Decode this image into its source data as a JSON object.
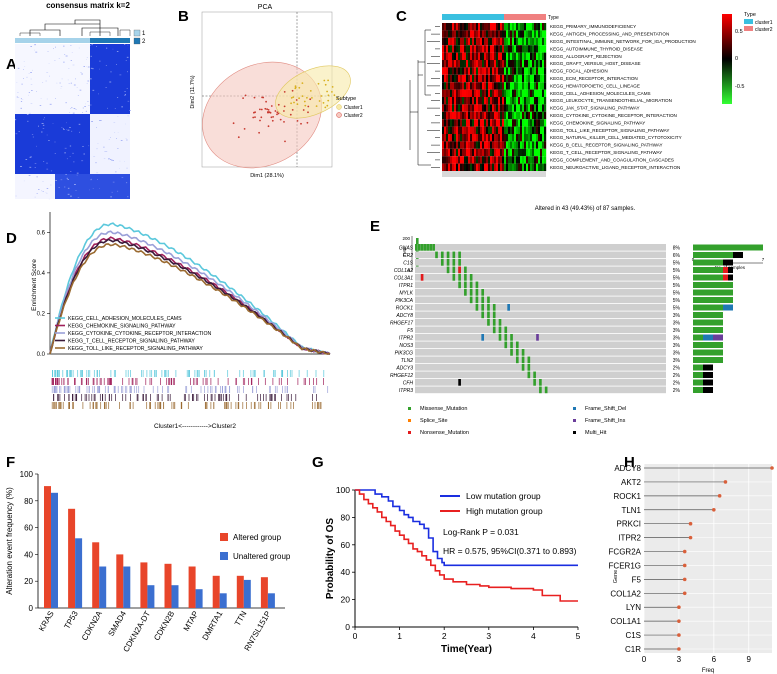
{
  "panel_labels": {
    "A": "A",
    "B": "B",
    "C": "C",
    "D": "D",
    "E": "E",
    "F": "F",
    "G": "G",
    "H": "H"
  },
  "panelA": {
    "title": "consensus matrix k=2",
    "legend": [
      {
        "label": "1",
        "color": "#a6d3ea"
      },
      {
        "label": "2",
        "color": "#1f78b4"
      }
    ]
  },
  "panelB": {
    "title": "PCA",
    "xlabel": "Dim1 (28.1%)",
    "ylabel": "Dim2 (11.7%)",
    "legend_title": "Subtype",
    "legend": [
      {
        "label": "Cluster1",
        "color": "#e7c94a"
      },
      {
        "label": "Cluster2",
        "color": "#d8453a"
      }
    ]
  },
  "panelC": {
    "type_label": "Type",
    "pathways": [
      "KEGG_PRIMARY_IMMUNODEFICIENCY",
      "KEGG_ANTIGEN_PROCESSING_AND_PRESENTATION",
      "KEGG_INTESTINAL_IMMUNE_NETWORK_FOR_IGA_PRODUCTION",
      "KEGG_AUTOIMMUNE_THYROID_DISEASE",
      "KEGG_ALLOGRAFT_REJECTION",
      "KEGG_GRAFT_VERSUS_HOST_DISEASE",
      "KEGG_FOCAL_ADHESION",
      "KEGG_ECM_RECEPTOR_INTERACTION",
      "KEGG_HEMATOPOIETIC_CELL_LINEAGE",
      "KEGG_CELL_ADHESION_MOLECULES_CAMS",
      "KEGG_LEUKOCYTE_TRANSENDOTHELIAL_MIGRATION",
      "KEGG_JAK_STAT_SIGNALING_PATHWAY",
      "KEGG_CYTOKINE_CYTOKINE_RECEPTOR_INTERACTION",
      "KEGG_CHEMOKINE_SIGNALING_PATHWAY",
      "KEGG_TOLL_LIKE_RECEPTOR_SIGNALING_PATHWAY",
      "KEGG_NATURAL_KILLER_CELL_MEDIATED_CYTOTOXICITY",
      "KEGG_B_CELL_RECEPTOR_SIGNALING_PATHWAY",
      "KEGG_T_CELL_RECEPTOR_SIGNALING_PATHWAY",
      "KEGG_COMPLEMENT_AND_COAGULATION_CASCADES",
      "KEGG_NEUROACTIVE_LIGAND_RECEPTOR_INTERACTION"
    ],
    "scale_ticks": [
      "0.5",
      "0",
      "-0.5"
    ],
    "type_legend_title": "Type",
    "type_legend": [
      {
        "label": "cluster1",
        "color": "#3ac0e0"
      },
      {
        "label": "cluster2",
        "color": "#f08080"
      }
    ]
  },
  "panelD": {
    "ylabel": "Enrichment Score",
    "yticks": [
      "0.0",
      "0.2",
      "0.4",
      "0.6"
    ],
    "xlabel": "Cluster1<------------>Cluster2",
    "series": [
      {
        "name": "KEGG_CELL_ADHESION_MOLECULES_CAMS",
        "color": "#5bc8dc",
        "peak": 0.64
      },
      {
        "name": "KEGG_CHEMOKINE_SIGNALING_PATHWAY",
        "color": "#a0205a",
        "peak": 0.57
      },
      {
        "name": "KEGG_CYTOKINE_CYTOKINE_RECEPTOR_INTERACTION",
        "color": "#9aa0d8",
        "peak": 0.6
      },
      {
        "name": "KEGG_T_CELL_RECEPTOR_SIGNALING_PATHWAY",
        "color": "#3a1a3a",
        "peak": 0.56
      },
      {
        "name": "KEGG_TOLL_LIKE_RECEPTOR_SIGNALING_PATHWAY",
        "color": "#9a6a30",
        "peak": 0.54
      }
    ]
  },
  "panelE": {
    "title": "Altered in 43 (49.43%) of 87 samples.",
    "tmb_label": "TMB",
    "tmb_ticks": [
      "200",
      "0"
    ],
    "nsamples_label": "No. of samples",
    "nsamples_ticks": [
      "0",
      "7"
    ],
    "genes": [
      "GNAS",
      "CR2",
      "C1S",
      "COL1A2",
      "COL3A1",
      "ITPR1",
      "MYLK",
      "PIK3CA",
      "ROCK1",
      "ADCY8",
      "RHGEF17",
      "F5",
      "ITPR2",
      "NOS3",
      "PIK3CG",
      "TLN2",
      "ADCY3",
      "RHGEF12",
      "CFH",
      "ITPR3"
    ],
    "percents": [
      "8%",
      "6%",
      "5%",
      "5%",
      "5%",
      "5%",
      "5%",
      "5%",
      "5%",
      "3%",
      "3%",
      "3%",
      "3%",
      "3%",
      "3%",
      "3%",
      "2%",
      "2%",
      "2%",
      "2%"
    ],
    "counts": [
      7,
      5,
      4,
      4,
      4,
      4,
      4,
      4,
      4,
      3,
      3,
      3,
      3,
      3,
      3,
      3,
      2,
      2,
      2,
      2
    ],
    "legend": [
      {
        "label": "Missense_Mutation",
        "color": "#33a02c"
      },
      {
        "label": "Frame_Shift_Del",
        "color": "#1f78b4"
      },
      {
        "label": "Splice_Site",
        "color": "#ff7f00"
      },
      {
        "label": "Frame_Shift_Ins",
        "color": "#6a3d9a"
      },
      {
        "label": "Nonsense_Mutation",
        "color": "#e31a1c"
      },
      {
        "label": "Multi_Hit",
        "color": "#000000"
      }
    ]
  },
  "chart_data": [
    {
      "type": "bar",
      "panel": "F",
      "ylabel": "Alteration event frequency (%)",
      "yticks": [
        0,
        20,
        40,
        60,
        80,
        100
      ],
      "ylim": [
        0,
        100
      ],
      "categories": [
        "KRAS",
        "TP53",
        "CDKN2A",
        "SMAD4",
        "CDKN2A-DT",
        "CDKN2B",
        "MTAP",
        "DMRTA1",
        "TTN",
        "RN7SL151P"
      ],
      "series": [
        {
          "name": "Altered group",
          "color": "#e8452a",
          "values": [
            91,
            74,
            49,
            40,
            34,
            33,
            31,
            24,
            24,
            23
          ]
        },
        {
          "name": "Unaltered group",
          "color": "#3b6fd0",
          "values": [
            86,
            52,
            31,
            31,
            17,
            17,
            14,
            11,
            21,
            11
          ]
        }
      ]
    },
    {
      "type": "line",
      "panel": "G",
      "xlabel": "Time(Year)",
      "ylabel": "Probability of OS",
      "xticks": [
        0,
        1,
        2,
        3,
        4,
        5
      ],
      "yticks": [
        "0",
        "20",
        "40",
        "60",
        "80",
        "100"
      ],
      "xlim": [
        0,
        5
      ],
      "ylim": [
        0,
        100
      ],
      "annotations": [
        "Log-Rank P = 0.031",
        "HR = 0.575, 95%CI(0.371 to 0.893)"
      ],
      "series": [
        {
          "name": "Low mutation group",
          "color": "#1a2ee0",
          "x": [
            0,
            0.3,
            0.45,
            0.6,
            0.75,
            0.85,
            1.0,
            1.1,
            1.2,
            1.3,
            1.45,
            1.55,
            1.65,
            1.75,
            1.85,
            1.95,
            2.0,
            5
          ],
          "y": [
            100,
            100,
            97,
            95,
            92,
            88,
            85,
            82,
            80,
            77,
            75,
            72,
            65,
            55,
            50,
            47,
            45,
            45
          ]
        },
        {
          "name": "High mutation group",
          "color": "#e82020",
          "x": [
            0,
            0.1,
            0.2,
            0.3,
            0.4,
            0.5,
            0.6,
            0.7,
            0.8,
            0.9,
            1.0,
            1.1,
            1.2,
            1.3,
            1.4,
            1.5,
            1.6,
            1.7,
            1.8,
            1.9,
            2.0,
            2.2,
            2.5,
            2.8,
            3.0,
            3.5,
            4.0,
            4.2,
            4.6,
            5
          ],
          "y": [
            100,
            97,
            93,
            90,
            87,
            84,
            80,
            77,
            74,
            70,
            67,
            64,
            61,
            57,
            55,
            52,
            49,
            45,
            41,
            38,
            35,
            33,
            31,
            30,
            29,
            28,
            27,
            23,
            19,
            19
          ]
        }
      ]
    },
    {
      "type": "scatter",
      "panel": "H",
      "xlabel": "Freq",
      "ylabel": "Gene",
      "xticks": [
        0,
        3,
        6,
        9
      ],
      "xlim": [
        0,
        11
      ],
      "categories": [
        "ADCY8",
        "AKT2",
        "ROCK1",
        "TLN1",
        "PRKCI",
        "ITPR2",
        "FCGR2A",
        "FCER1G",
        "F5",
        "COL1A2",
        "LYN",
        "COL1A1",
        "C1S",
        "C1R"
      ],
      "values": [
        11,
        7,
        6.5,
        6,
        4,
        4,
        3.5,
        3.5,
        3.5,
        3.5,
        3,
        3,
        3,
        3
      ]
    }
  ]
}
